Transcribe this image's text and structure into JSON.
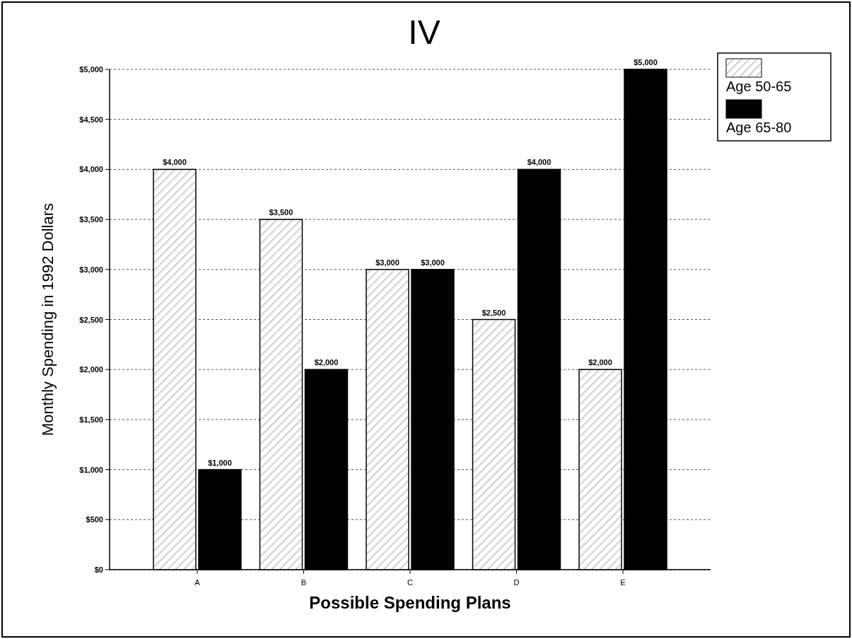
{
  "chart_data": {
    "type": "bar",
    "title": "IV",
    "xlabel": "Possible Spending Plans",
    "ylabel": "Monthly Spending in 1992 Dollars",
    "categories": [
      "A",
      "B",
      "C",
      "D",
      "E"
    ],
    "series": [
      {
        "name": "Age 50-65",
        "color": "#ffffff",
        "values": [
          4000,
          3500,
          3000,
          2500,
          2000
        ],
        "value_labels": [
          "$4,000",
          "$3,500",
          "$3,000",
          "$2,500",
          "$2,000"
        ]
      },
      {
        "name": "Age 65-80",
        "color": "#000000",
        "values": [
          1000,
          2000,
          3000,
          4000,
          5000
        ],
        "value_labels": [
          "$1,000",
          "$2,000",
          "$3,000",
          "$4,000",
          "$5,000"
        ]
      }
    ],
    "ylim": [
      0,
      5000
    ],
    "yticks": [
      {
        "value": 0,
        "label": "$0"
      },
      {
        "value": 500,
        "label": "$500"
      },
      {
        "value": 1000,
        "label": "$1,000"
      },
      {
        "value": 1500,
        "label": "$1,500"
      },
      {
        "value": 2000,
        "label": "$2,000"
      },
      {
        "value": 2500,
        "label": "$2,500"
      },
      {
        "value": 3000,
        "label": "$3,000"
      },
      {
        "value": 3500,
        "label": "$3,500"
      },
      {
        "value": 4000,
        "label": "$4,000"
      },
      {
        "value": 4500,
        "label": "$4,500"
      },
      {
        "value": 5000,
        "label": "$5,000"
      }
    ],
    "grid": "y",
    "legend": "right"
  }
}
